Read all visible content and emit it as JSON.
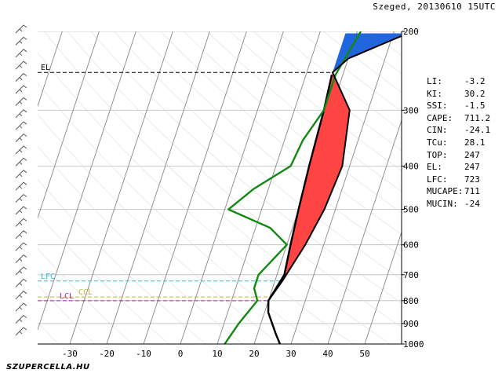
{
  "header": {
    "title": "Szeged, 20130610 15UTC"
  },
  "footer": {
    "credit": "SZUPERCELLA.HU"
  },
  "indices": [
    {
      "key": "LI:",
      "value": "-3.2"
    },
    {
      "key": "KI:",
      "value": "30.2"
    },
    {
      "key": "SSI:",
      "value": "-1.5"
    },
    {
      "key": "CAPE:",
      "value": "711.2"
    },
    {
      "key": "CIN:",
      "value": "-24.1"
    },
    {
      "key": "TCu:",
      "value": "28.1"
    },
    {
      "key": "TOP:",
      "value": "247"
    },
    {
      "key": "EL:",
      "value": "247"
    },
    {
      "key": "LFC:",
      "value": "723"
    },
    {
      "key": "MUCAPE:",
      "value": "711"
    },
    {
      "key": "MUCIN:",
      "value": "-24"
    }
  ],
  "chart_data": {
    "type": "line",
    "title": "Szeged, 20130610 15UTC",
    "xlabel": "",
    "ylabel": "",
    "x_ticks": [
      "-30",
      "-20",
      "-10",
      "0",
      "10",
      "20",
      "30",
      "40",
      "50"
    ],
    "y_ticks": [
      "200",
      "300",
      "400",
      "500",
      "600",
      "700",
      "800",
      "900",
      "1000"
    ],
    "series": [
      {
        "role": "temperature",
        "color": "#000000",
        "points": [
          [
            27,
            1000
          ],
          [
            25,
            950
          ],
          [
            21,
            850
          ],
          [
            20,
            800
          ],
          [
            22,
            700
          ],
          [
            21,
            600
          ],
          [
            20,
            500
          ],
          [
            19,
            400
          ],
          [
            18,
            300
          ],
          [
            17,
            250
          ]
        ]
      },
      {
        "role": "dewpoint",
        "color": "#118811",
        "points": [
          [
            12,
            1000
          ],
          [
            14,
            900
          ],
          [
            17,
            800
          ],
          [
            15,
            750
          ],
          [
            15,
            700
          ],
          [
            20,
            600
          ],
          [
            14,
            550
          ],
          [
            1,
            500
          ],
          [
            6,
            450
          ],
          [
            14,
            400
          ],
          [
            15,
            350
          ],
          [
            18,
            300
          ],
          [
            18,
            250
          ],
          [
            21,
            200
          ]
        ]
      },
      {
        "role": "parcel",
        "color": "#000000",
        "points": [
          [
            27,
            1000
          ],
          [
            25,
            950
          ],
          [
            21,
            850
          ],
          [
            20,
            800
          ],
          [
            22,
            723
          ],
          [
            25,
            600
          ],
          [
            27,
            500
          ],
          [
            28,
            400
          ],
          [
            25,
            300
          ],
          [
            17,
            247
          ],
          [
            20,
            230
          ],
          [
            35,
            200
          ]
        ]
      }
    ],
    "levels": [
      {
        "label": "EL",
        "pressure": 247,
        "color": "#000000"
      },
      {
        "label": "LFC",
        "pressure": 723,
        "color": "#33bbcc"
      },
      {
        "label": "CCL",
        "pressure": 785,
        "color": "#bbbb33"
      },
      {
        "label": "LCL",
        "pressure": 800,
        "color": "#aa22aa"
      }
    ],
    "cape_color": "#ff4444",
    "top_fill_color": "#2266dd",
    "wind_barb_color": "#555555",
    "grid": true
  }
}
